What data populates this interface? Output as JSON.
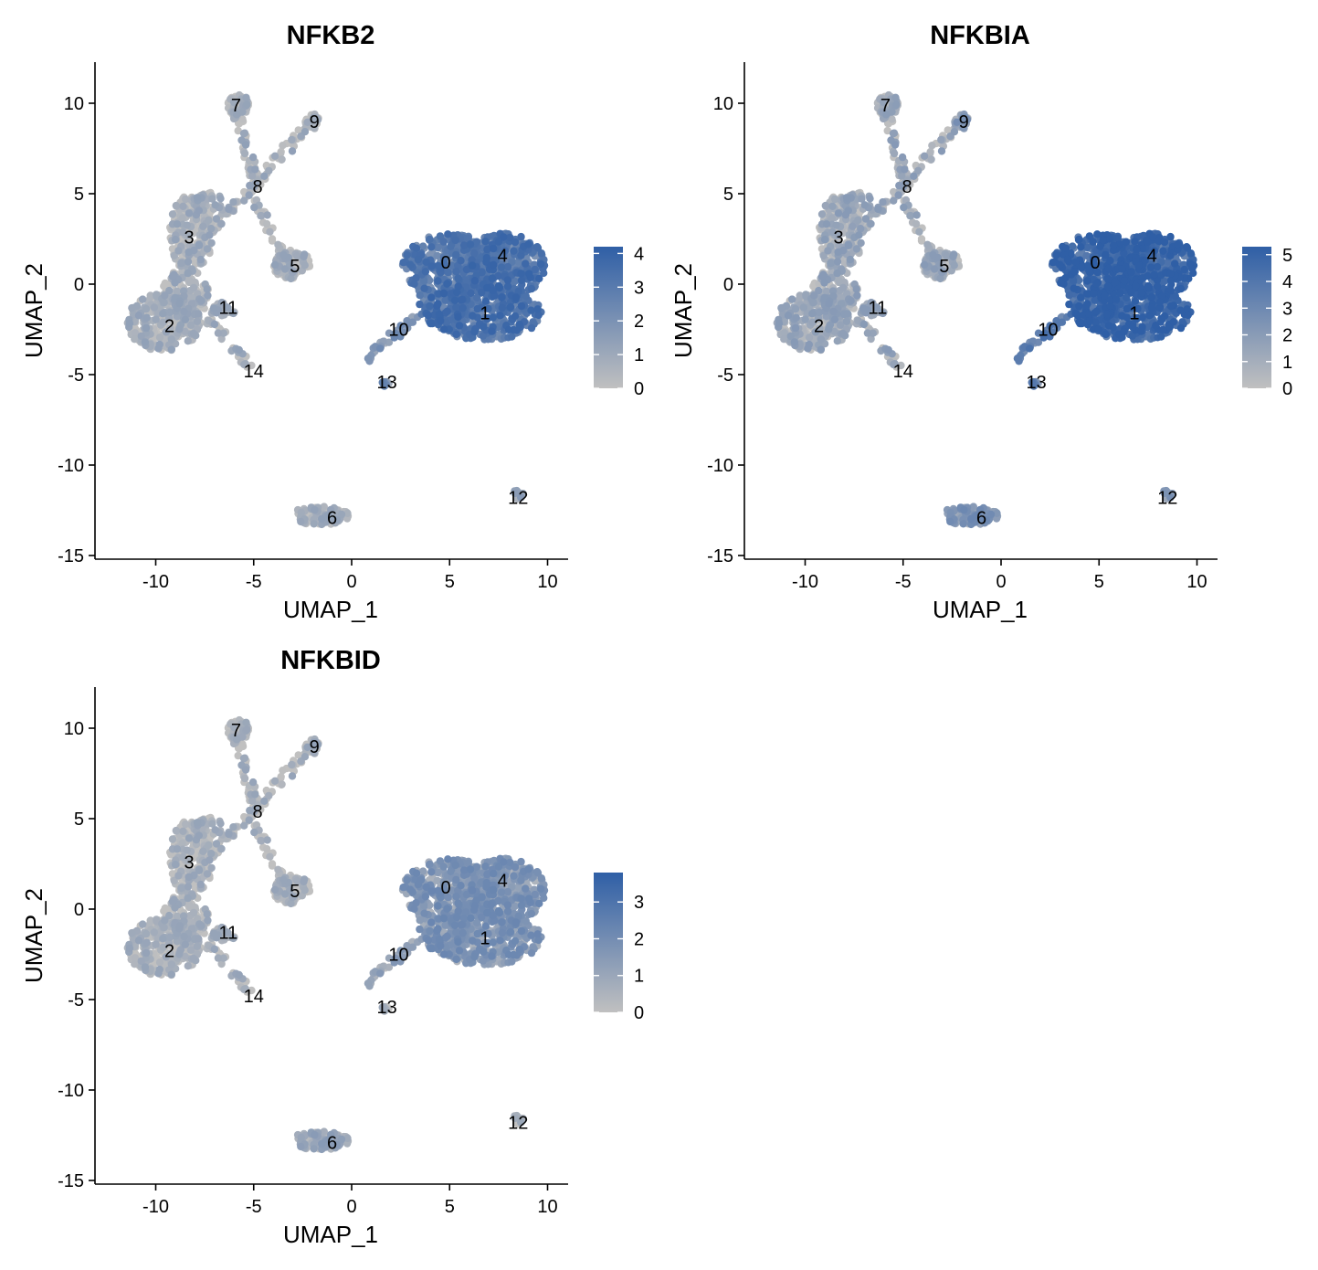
{
  "chart_data": [
    {
      "type": "scatter",
      "title": "NFKB2",
      "xlabel": "UMAP_1",
      "ylabel": "UMAP_2",
      "xlim": [
        -13,
        11
      ],
      "ylim": [
        -15,
        12
      ],
      "x_ticks": [
        -10,
        -5,
        0,
        5,
        10
      ],
      "y_ticks": [
        10,
        5,
        0,
        -5,
        -10,
        -15
      ],
      "grid": false,
      "legend": "right",
      "color_low": "#c0c0c0",
      "color_high": "#2f5fa6",
      "color_max": 4.2,
      "legend_ticks": [
        4,
        3,
        2,
        1,
        0
      ],
      "clusters": [
        {
          "label": "0",
          "x": 4.8,
          "y": 1.2
        },
        {
          "label": "1",
          "x": 6.8,
          "y": -1.6
        },
        {
          "label": "2",
          "x": -9.3,
          "y": -2.3
        },
        {
          "label": "3",
          "x": -8.3,
          "y": 2.6
        },
        {
          "label": "4",
          "x": 7.7,
          "y": 1.6
        },
        {
          "label": "5",
          "x": -2.9,
          "y": 1.0
        },
        {
          "label": "6",
          "x": -1.0,
          "y": -12.9
        },
        {
          "label": "7",
          "x": -5.9,
          "y": 9.9
        },
        {
          "label": "8",
          "x": -4.8,
          "y": 5.4
        },
        {
          "label": "9",
          "x": -1.9,
          "y": 9.0
        },
        {
          "label": "10",
          "x": 2.4,
          "y": -2.5
        },
        {
          "label": "11",
          "x": -6.3,
          "y": -1.3
        },
        {
          "label": "12",
          "x": 8.5,
          "y": -11.8
        },
        {
          "label": "13",
          "x": 1.8,
          "y": -5.4
        },
        {
          "label": "14",
          "x": -5.0,
          "y": -4.8
        }
      ],
      "cluster_expression": {
        "0": 0.65,
        "1": 0.7,
        "4": 0.7,
        "10": 0.35,
        "13": 0.45,
        "12": 0.2,
        "default": 0.08
      }
    },
    {
      "type": "scatter",
      "title": "NFKBIA",
      "xlabel": "UMAP_1",
      "ylabel": "UMAP_2",
      "xlim": [
        -13,
        11
      ],
      "ylim": [
        -15,
        12
      ],
      "x_ticks": [
        -10,
        -5,
        0,
        5,
        10
      ],
      "y_ticks": [
        10,
        5,
        0,
        -5,
        -10,
        -15
      ],
      "grid": false,
      "legend": "right",
      "color_low": "#c0c0c0",
      "color_high": "#2f5fa6",
      "color_max": 5.3,
      "legend_ticks": [
        5,
        4,
        3,
        2,
        1,
        0
      ],
      "clusters": [
        {
          "label": "0",
          "x": 4.8,
          "y": 1.2
        },
        {
          "label": "1",
          "x": 6.8,
          "y": -1.6
        },
        {
          "label": "2",
          "x": -9.3,
          "y": -2.3
        },
        {
          "label": "3",
          "x": -8.3,
          "y": 2.6
        },
        {
          "label": "4",
          "x": 7.7,
          "y": 1.6
        },
        {
          "label": "5",
          "x": -2.9,
          "y": 1.0
        },
        {
          "label": "6",
          "x": -1.0,
          "y": -12.9
        },
        {
          "label": "7",
          "x": -5.9,
          "y": 9.9
        },
        {
          "label": "8",
          "x": -4.8,
          "y": 5.4
        },
        {
          "label": "9",
          "x": -1.9,
          "y": 9.0
        },
        {
          "label": "10",
          "x": 2.4,
          "y": -2.5
        },
        {
          "label": "11",
          "x": -6.3,
          "y": -1.3
        },
        {
          "label": "12",
          "x": 8.5,
          "y": -11.8
        },
        {
          "label": "13",
          "x": 1.8,
          "y": -5.4
        },
        {
          "label": "14",
          "x": -5.0,
          "y": -4.8
        }
      ],
      "cluster_expression": {
        "0": 0.85,
        "1": 0.85,
        "4": 0.85,
        "10": 0.6,
        "13": 0.55,
        "6": 0.35,
        "9": 0.35,
        "12": 0.3,
        "default": 0.15
      }
    },
    {
      "type": "scatter",
      "title": "NFKBID",
      "xlabel": "UMAP_1",
      "ylabel": "UMAP_2",
      "xlim": [
        -13,
        11
      ],
      "ylim": [
        -15,
        12
      ],
      "x_ticks": [
        -10,
        -5,
        0,
        5,
        10
      ],
      "y_ticks": [
        10,
        5,
        0,
        -5,
        -10,
        -15
      ],
      "grid": false,
      "legend": "right",
      "color_low": "#c0c0c0",
      "color_high": "#2f5fa6",
      "color_max": 3.8,
      "legend_ticks": [
        3,
        2,
        1,
        0
      ],
      "clusters": [
        {
          "label": "0",
          "x": 4.8,
          "y": 1.2
        },
        {
          "label": "1",
          "x": 6.8,
          "y": -1.6
        },
        {
          "label": "2",
          "x": -9.3,
          "y": -2.3
        },
        {
          "label": "3",
          "x": -8.3,
          "y": 2.6
        },
        {
          "label": "4",
          "x": 7.7,
          "y": 1.6
        },
        {
          "label": "5",
          "x": -2.9,
          "y": 1.0
        },
        {
          "label": "6",
          "x": -1.0,
          "y": -12.9
        },
        {
          "label": "7",
          "x": -5.9,
          "y": 9.9
        },
        {
          "label": "8",
          "x": -4.8,
          "y": 5.4
        },
        {
          "label": "9",
          "x": -1.9,
          "y": 9.0
        },
        {
          "label": "10",
          "x": 2.4,
          "y": -2.5
        },
        {
          "label": "11",
          "x": -6.3,
          "y": -1.3
        },
        {
          "label": "12",
          "x": 8.5,
          "y": -11.8
        },
        {
          "label": "13",
          "x": 1.8,
          "y": -5.4
        },
        {
          "label": "14",
          "x": -5.0,
          "y": -4.8
        }
      ],
      "cluster_expression": {
        "0": 0.35,
        "1": 0.35,
        "4": 0.35,
        "10": 0.2,
        "6": 0.15,
        "9": 0.15,
        "default": 0.05
      }
    }
  ]
}
